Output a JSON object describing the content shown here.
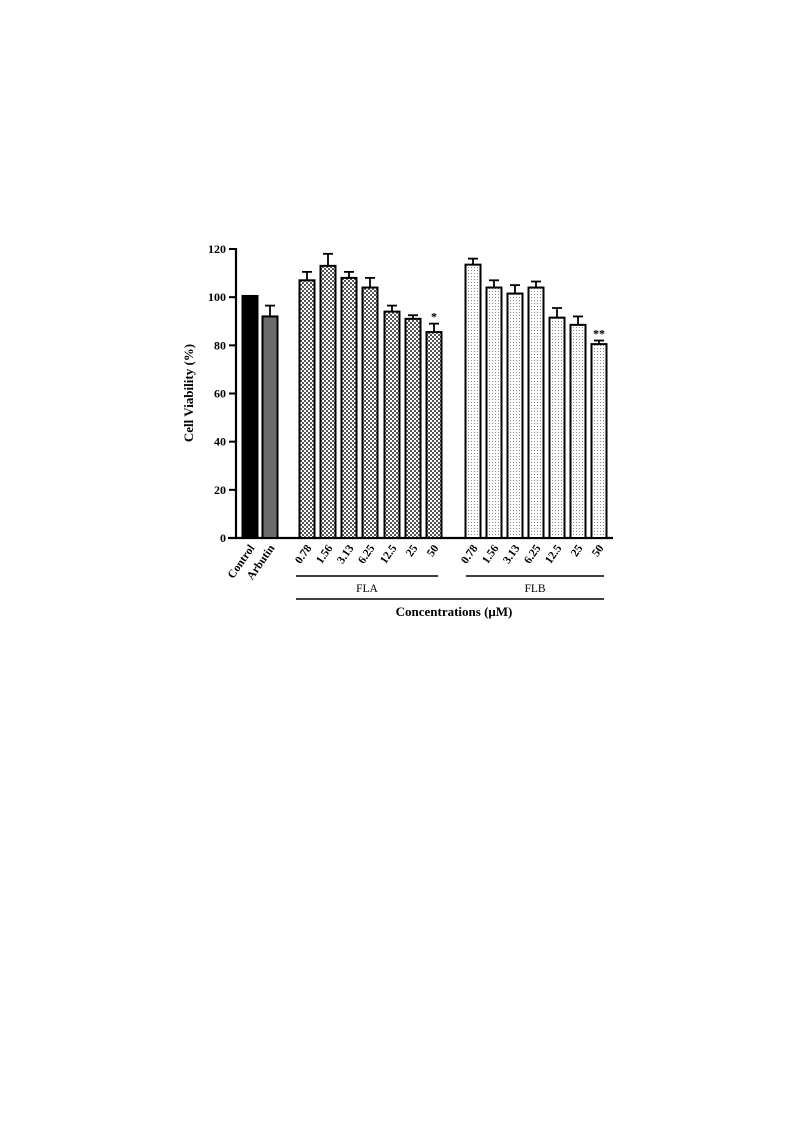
{
  "chart_data": {
    "type": "bar",
    "ylabel": "Cell Viability (%)",
    "xlabel": "Concentrations (μM)",
    "ylim": [
      0,
      120
    ],
    "yticks": [
      0,
      20,
      40,
      60,
      80,
      100,
      120
    ],
    "groups": [
      {
        "name": "",
        "categories": [
          "Control",
          "Arbutin"
        ],
        "values": [
          100.5,
          92
        ],
        "errors": [
          0,
          4.5
        ],
        "significance": [
          "",
          ""
        ],
        "fills": [
          "#000000",
          "#6b6b6b"
        ]
      },
      {
        "name": "FLA",
        "categories": [
          "0.78",
          "1.56",
          "3.13",
          "6.25",
          "12.5",
          "25",
          "50"
        ],
        "values": [
          107,
          113,
          108,
          104,
          94,
          91,
          85.5
        ],
        "errors": [
          3.5,
          5,
          2.5,
          4,
          2.5,
          1.5,
          3.5
        ],
        "significance": [
          "",
          "",
          "",
          "",
          "",
          "",
          "*"
        ],
        "pattern": "checker"
      },
      {
        "name": "FLB",
        "categories": [
          "0.78",
          "1.56",
          "3.13",
          "6.25",
          "12.5",
          "25",
          "50"
        ],
        "values": [
          113.5,
          104,
          101.5,
          104,
          91.5,
          88.5,
          80.5
        ],
        "errors": [
          2.5,
          3,
          3.5,
          2.5,
          4,
          3.5,
          1.5
        ],
        "significance": [
          "",
          "",
          "",
          "",
          "",
          "",
          "**"
        ],
        "pattern": "dots"
      }
    ],
    "colors": {
      "axis": "#000000",
      "control": "#000000",
      "arbutin": "#6b6b6b"
    }
  }
}
